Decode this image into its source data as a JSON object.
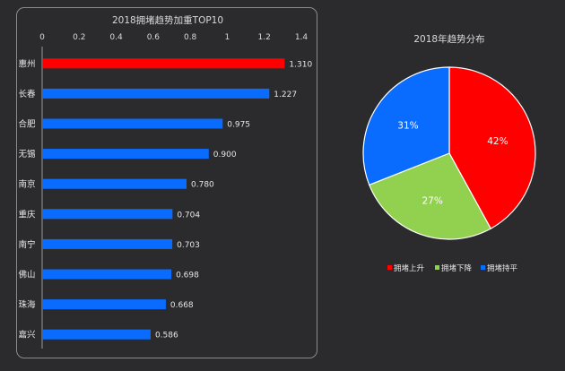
{
  "chart_data": [
    {
      "type": "bar",
      "orientation": "horizontal",
      "title": "2018拥堵趋势加重TOP10",
      "categories": [
        "惠州",
        "长春",
        "合肥",
        "无锡",
        "南京",
        "重庆",
        "南宁",
        "佛山",
        "珠海",
        "嘉兴"
      ],
      "values": [
        1.31,
        1.227,
        0.975,
        0.9,
        0.78,
        0.704,
        0.703,
        0.698,
        0.668,
        0.586
      ],
      "value_labels": [
        "1.310",
        "1.227",
        "0.975",
        "0.900",
        "0.780",
        "0.704",
        "0.703",
        "0.698",
        "0.668",
        "0.586"
      ],
      "xlim": [
        0,
        1.4
      ],
      "ticks": [
        "0",
        "0.2",
        "0.4",
        "0.6",
        "0.8",
        "1",
        "1.2",
        "1.4"
      ],
      "tick_values": [
        0,
        0.2,
        0.4,
        0.6,
        0.8,
        1.0,
        1.2,
        1.4
      ],
      "axis_position": "top",
      "grid": false,
      "colors": [
        "#ff0000",
        "#0a6cff",
        "#0a6cff",
        "#0a6cff",
        "#0a6cff",
        "#0a6cff",
        "#0a6cff",
        "#0a6cff",
        "#0a6cff",
        "#0a6cff"
      ]
    },
    {
      "type": "pie",
      "title": "2018年趋势分布",
      "labels": [
        "拥堵上升",
        "拥堵下降",
        "拥堵持平"
      ],
      "values": [
        42,
        27,
        31
      ],
      "value_labels": [
        "42%",
        "27%",
        "31%"
      ],
      "colors": [
        "#ff0000",
        "#92d050",
        "#0a6cff"
      ],
      "legend_position": "bottom"
    }
  ]
}
